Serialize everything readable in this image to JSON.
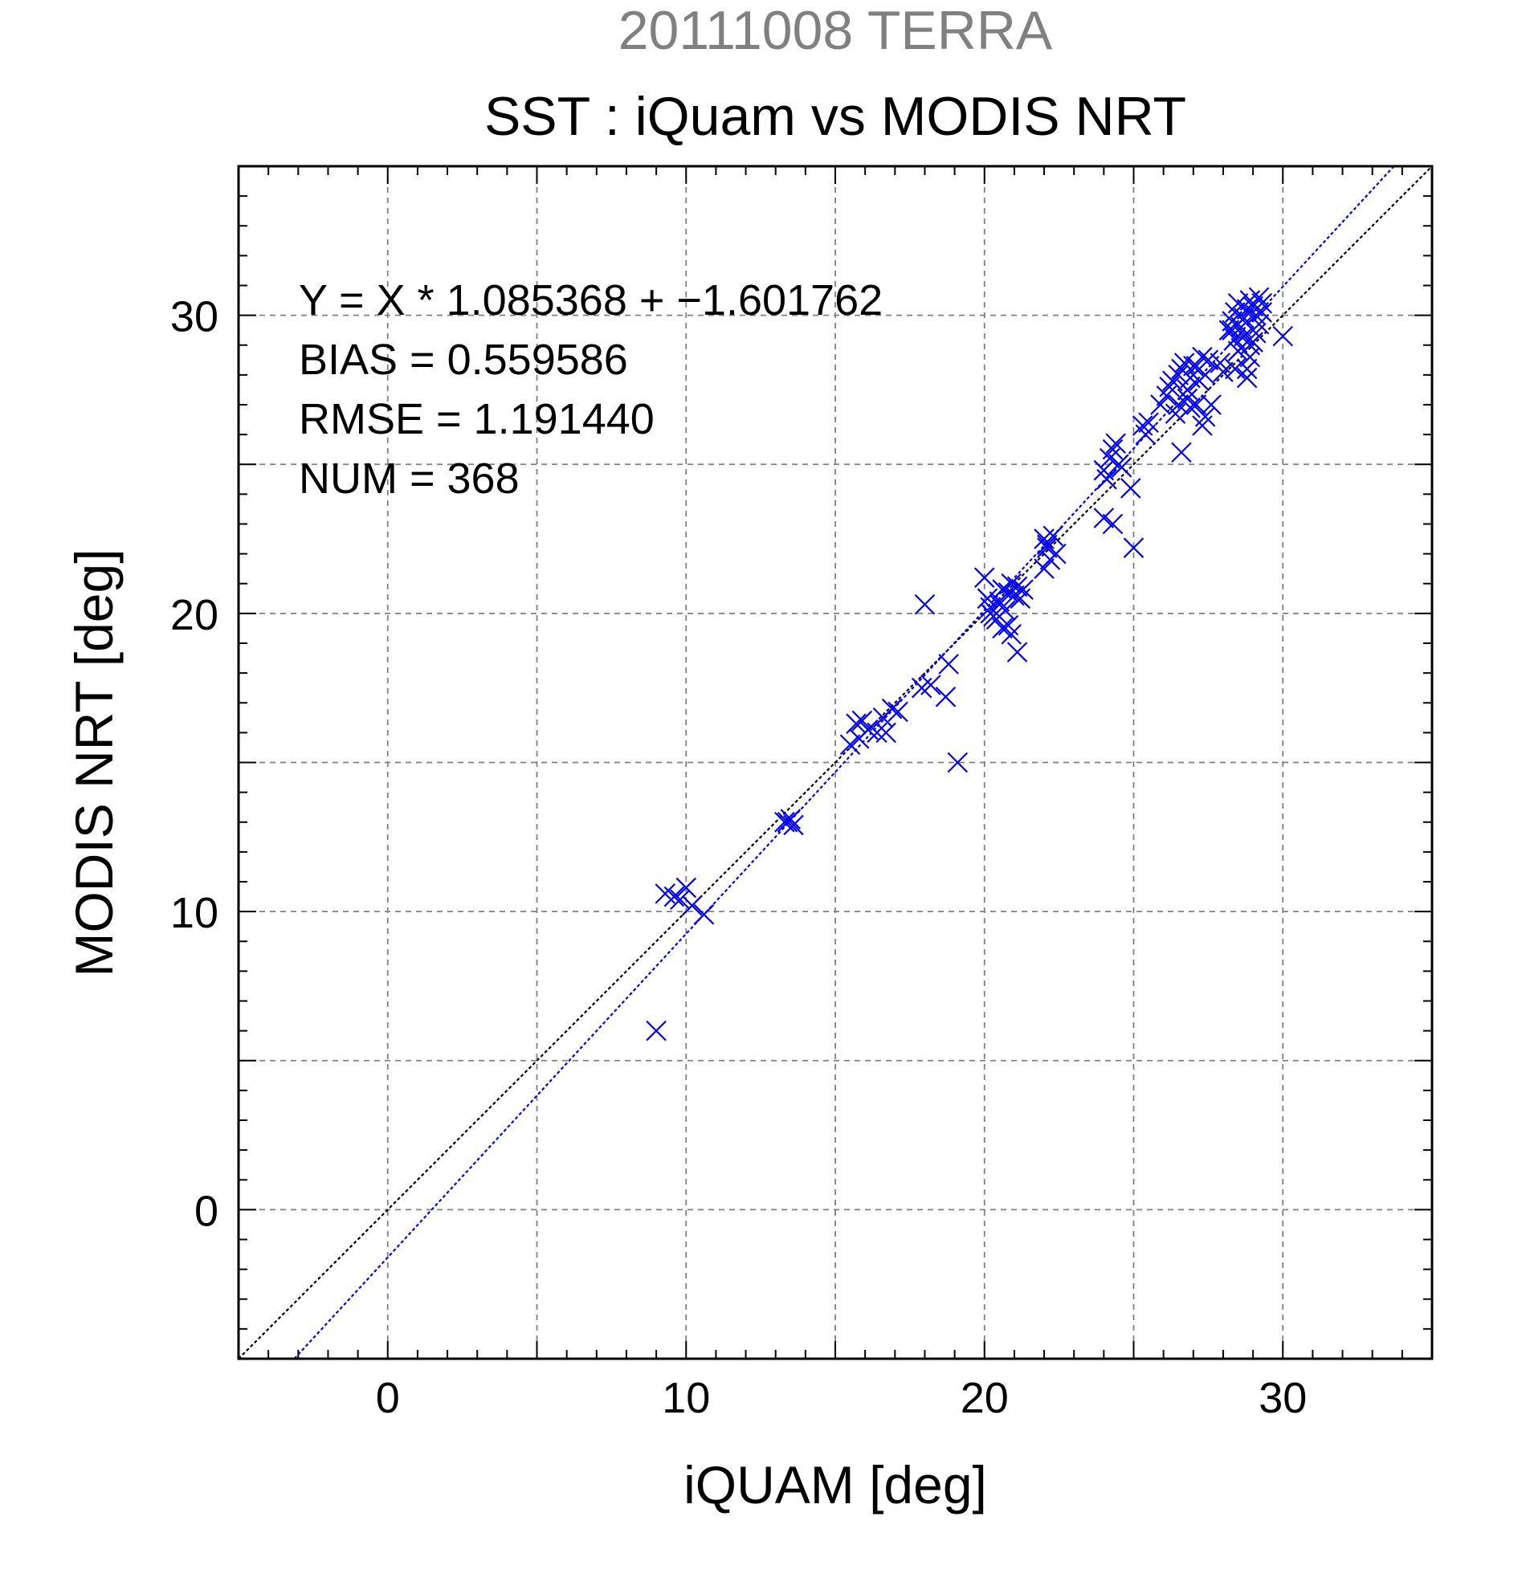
{
  "chart_data": {
    "type": "scatter",
    "title": "20111008 TERRA",
    "subtitle": "SST : iQuam vs MODIS NRT",
    "xlabel": "iQUAM [deg]",
    "ylabel": "MODIS NRT [deg]",
    "xlim": [
      -5,
      35
    ],
    "ylim": [
      -5,
      35
    ],
    "xticks": [
      "0",
      "10",
      "20",
      "30"
    ],
    "yticks": [
      "0",
      "10",
      "20",
      "30"
    ],
    "grid": true,
    "annotations": [
      "Y = X * 1.085368 + −1.601762",
      "BIAS = 0.559586",
      "RMSE = 1.191440",
      "NUM = 368"
    ],
    "colors": {
      "points": "#0000ff",
      "fit": "#0000ff",
      "identity": "#000000",
      "title": "#808080",
      "grid": "#808080"
    },
    "lines": [
      {
        "kind": "identity",
        "slope": 1,
        "intercept": 0,
        "style": "dotted",
        "color": "#000000"
      },
      {
        "kind": "fit",
        "slope": 1.085368,
        "intercept": -1.601762,
        "style": "dotted",
        "color": "#0000ff"
      }
    ],
    "series": [
      {
        "marker": "x",
        "x": [
          9.0,
          9.3,
          9.6,
          9.8,
          10.0,
          10.2,
          10.6,
          13.3,
          13.5,
          13.6,
          13.4,
          15.5,
          15.7,
          15.8,
          15.9,
          16.1,
          16.4,
          16.6,
          16.7,
          16.9,
          17.1,
          18.0,
          17.9,
          18.2,
          18.8,
          18.7,
          19.1,
          20.0,
          20.1,
          20.2,
          20.4,
          20.5,
          20.6,
          20.7,
          20.8,
          20.9,
          21.0,
          21.1,
          21.2,
          21.3,
          20.3,
          20.5,
          20.8,
          20.9,
          21.1,
          20.6,
          20.2,
          22.0,
          22.1,
          22.2,
          22.3,
          22.0,
          22.1,
          22.4,
          24.0,
          24.2,
          24.3,
          24.4,
          24.5,
          24.1,
          24.6,
          24.3,
          24.0,
          24.9,
          25.0,
          25.3,
          25.5,
          25.4,
          25.9,
          26.1,
          26.2,
          26.3,
          26.5,
          26.6,
          26.7,
          26.8,
          26.9,
          27.0,
          27.1,
          27.2,
          27.3,
          27.4,
          27.5,
          26.4,
          26.8,
          27.1,
          26.9,
          26.6,
          27.4,
          27.6,
          28.0,
          27.9,
          27.3,
          26.5,
          28.2,
          28.3,
          28.4,
          28.5,
          28.6,
          28.7,
          28.8,
          28.9,
          29.0,
          29.1,
          29.2,
          29.3,
          28.5,
          28.7,
          28.9,
          29.1,
          28.4,
          28.6,
          28.8,
          29.0,
          29.2,
          28.3,
          28.9,
          30.0,
          28.8,
          28.4,
          29.3
        ],
        "y": [
          6.0,
          10.6,
          10.5,
          10.4,
          10.8,
          10.2,
          9.9,
          13.0,
          13.1,
          12.9,
          13.0,
          15.6,
          16.3,
          15.8,
          16.4,
          16.1,
          16.0,
          16.5,
          16.0,
          16.8,
          16.7,
          20.3,
          17.5,
          17.6,
          18.3,
          17.2,
          15.0,
          21.2,
          20.5,
          20.0,
          19.8,
          20.3,
          19.5,
          20.1,
          20.7,
          21.0,
          20.6,
          20.9,
          20.5,
          20.8,
          19.9,
          20.4,
          19.6,
          19.3,
          18.7,
          20.8,
          20.2,
          22.5,
          22.2,
          21.8,
          22.6,
          21.5,
          22.3,
          22.0,
          24.8,
          25.2,
          25.5,
          25.7,
          25.0,
          24.5,
          24.9,
          23.0,
          23.2,
          24.2,
          22.2,
          26.3,
          26.4,
          26.0,
          27.0,
          27.3,
          27.6,
          27.8,
          28.0,
          28.2,
          28.4,
          27.5,
          27.9,
          28.3,
          27.0,
          27.8,
          28.6,
          28.0,
          28.5,
          26.7,
          27.2,
          28.3,
          26.9,
          25.4,
          26.6,
          27.0,
          28.1,
          28.4,
          26.3,
          27.0,
          29.5,
          29.8,
          30.1,
          30.4,
          29.6,
          29.9,
          30.2,
          30.5,
          30.3,
          30.0,
          29.7,
          30.4,
          28.8,
          29.3,
          29.0,
          29.4,
          29.2,
          28.9,
          28.2,
          29.1,
          30.6,
          29.5,
          28.6,
          29.3,
          27.9,
          28.2,
          30.1
        ]
      }
    ]
  }
}
